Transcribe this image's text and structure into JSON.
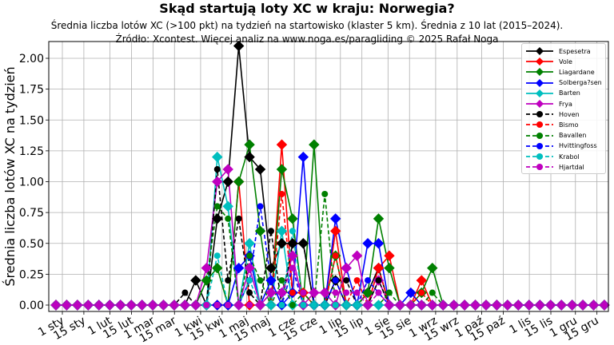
{
  "header": {
    "title": "Skąd startują loty XC w kraju: Norwegia?",
    "subtitle1": "Średnia liczba lotów XC (>100 pkt) na tydzień na startowisko (klaster 5 km). Średnia z 10 lat (2015–2024).",
    "subtitle2": "Źródło: Xcontest. Więcej analiz na www.noga.es/paragliding © 2025 Rafał Noga"
  },
  "chart_data": {
    "type": "line",
    "title": "Skąd startują loty XC w kraju: Norwegia?",
    "xlabel": "",
    "ylabel": "Średnia liczba lotów XC na tydzień",
    "ylim": [
      -0.04,
      2.14
    ],
    "yticks": [
      "0.00",
      "0.25",
      "0.50",
      "0.75",
      "1.00",
      "1.25",
      "1.50",
      "1.75",
      "2.00"
    ],
    "xticks": [
      "1 sty",
      "15 sty",
      "1 lut",
      "15 lut",
      "1 mar",
      "15 mar",
      "1 kwi",
      "15 kwi",
      "1 maj",
      "15 maj",
      "1 cze",
      "15 cze",
      "1 lip",
      "15 lip",
      "1 sie",
      "15 sie",
      "1 wrz",
      "15 wrz",
      "1 paź",
      "15 paź",
      "1 lis",
      "15 lis",
      "1 gru",
      "15 gru"
    ],
    "grid": true,
    "legend_position": "upper right",
    "x": "week index 1-52",
    "series": [
      {
        "name": "Espesetra",
        "color": "#000000",
        "style": "solid",
        "marker": "diamond",
        "values": [
          0,
          0,
          0,
          0,
          0,
          0,
          0,
          0,
          0,
          0,
          0,
          0,
          0,
          0.2,
          0,
          0.7,
          1.0,
          2.1,
          1.2,
          1.1,
          0.3,
          0.5,
          0.5,
          0.5,
          0,
          0,
          0.2,
          0,
          0,
          0.1,
          0.3,
          0,
          0,
          0,
          0,
          0,
          0,
          0,
          0,
          0,
          0,
          0,
          0,
          0,
          0,
          0,
          0,
          0,
          0,
          0,
          0,
          0
        ]
      },
      {
        "name": "Vole",
        "color": "#ff0000",
        "style": "solid",
        "marker": "diamond",
        "values": [
          0,
          0,
          0,
          0,
          0,
          0,
          0,
          0,
          0,
          0,
          0,
          0,
          0,
          0,
          0,
          0,
          0,
          1.0,
          0,
          0,
          0,
          1.3,
          0.1,
          0.1,
          0,
          0,
          0.6,
          0,
          0,
          0,
          0.3,
          0.4,
          0,
          0,
          0.2,
          0,
          0,
          0,
          0,
          0,
          0,
          0,
          0,
          0,
          0,
          0,
          0,
          0,
          0,
          0,
          0,
          0
        ]
      },
      {
        "name": "Liagardane",
        "color": "#008000",
        "style": "solid",
        "marker": "diamond",
        "values": [
          0,
          0,
          0,
          0,
          0,
          0,
          0,
          0,
          0,
          0,
          0,
          0,
          0,
          0,
          0.2,
          0.3,
          0,
          1.0,
          1.3,
          0.6,
          0,
          1.1,
          0.7,
          0,
          1.3,
          0,
          0.4,
          0,
          0,
          0.1,
          0.7,
          0.3,
          0,
          0,
          0.1,
          0.3,
          0,
          0,
          0,
          0,
          0,
          0,
          0,
          0,
          0,
          0,
          0,
          0,
          0,
          0,
          0,
          0
        ]
      },
      {
        "name": "Solberga?sen",
        "color": "#0000ff",
        "style": "solid",
        "marker": "diamond",
        "values": [
          0,
          0,
          0,
          0,
          0,
          0,
          0,
          0,
          0,
          0,
          0,
          0,
          0,
          0,
          0,
          0,
          0,
          0.3,
          0.4,
          0,
          0.2,
          0,
          0.1,
          1.2,
          0,
          0,
          0.7,
          0.3,
          0,
          0.5,
          0.5,
          0,
          0,
          0.1,
          0,
          0,
          0,
          0,
          0,
          0,
          0,
          0,
          0,
          0,
          0,
          0,
          0,
          0,
          0,
          0,
          0,
          0
        ]
      },
      {
        "name": "Barten",
        "color": "#00bfbf",
        "style": "solid",
        "marker": "diamond",
        "values": [
          0,
          0,
          0,
          0,
          0,
          0,
          0,
          0,
          0,
          0,
          0,
          0,
          0,
          0,
          0,
          1.2,
          0.8,
          0,
          0.5,
          0,
          0,
          0.6,
          0,
          0,
          0,
          0,
          0,
          0,
          0,
          0,
          0,
          0,
          0,
          0,
          0,
          0,
          0,
          0,
          0,
          0,
          0,
          0,
          0,
          0,
          0,
          0,
          0,
          0,
          0,
          0,
          0,
          0
        ]
      },
      {
        "name": "Frya",
        "color": "#bf00bf",
        "style": "solid",
        "marker": "diamond",
        "values": [
          0,
          0,
          0,
          0,
          0,
          0,
          0,
          0,
          0,
          0,
          0,
          0,
          0,
          0,
          0.3,
          1.0,
          1.1,
          0,
          0.3,
          0,
          0.1,
          0.1,
          0.4,
          0,
          0.1,
          0.1,
          0,
          0.3,
          0.4,
          0,
          0.2,
          0,
          0,
          0,
          0,
          0,
          0,
          0,
          0,
          0,
          0,
          0,
          0,
          0,
          0,
          0,
          0,
          0,
          0,
          0,
          0,
          0
        ]
      },
      {
        "name": "Hoven",
        "color": "#000000",
        "style": "dashed",
        "marker": "circle",
        "values": [
          0,
          0,
          0,
          0,
          0,
          0,
          0,
          0,
          0,
          0,
          0,
          0,
          0.1,
          0,
          0,
          1.1,
          0.2,
          0.7,
          0.1,
          0,
          0.6,
          0,
          0.5,
          0.5,
          0,
          0,
          0.2,
          0.2,
          0,
          0,
          0.2,
          0,
          0,
          0,
          0,
          0,
          0,
          0,
          0,
          0,
          0,
          0,
          0,
          0,
          0,
          0,
          0,
          0,
          0,
          0,
          0,
          0
        ]
      },
      {
        "name": "Bismo",
        "color": "#ff0000",
        "style": "dashed",
        "marker": "circle",
        "values": [
          0,
          0,
          0,
          0,
          0,
          0,
          0,
          0,
          0,
          0,
          0,
          0,
          0,
          0,
          0,
          0,
          0,
          0,
          0,
          0,
          0,
          0.9,
          0.1,
          0.1,
          0,
          0,
          0.4,
          0,
          0.2,
          0,
          0.3,
          0,
          0,
          0,
          0.1,
          0,
          0,
          0,
          0,
          0,
          0,
          0,
          0,
          0,
          0,
          0,
          0,
          0,
          0,
          0,
          0,
          0
        ]
      },
      {
        "name": "Bavallen",
        "color": "#008000",
        "style": "dashed",
        "marker": "circle",
        "values": [
          0,
          0,
          0,
          0,
          0,
          0,
          0,
          0,
          0,
          0,
          0,
          0,
          0,
          0,
          0.2,
          0.8,
          0.7,
          0,
          0.4,
          0.2,
          0,
          0.2,
          0,
          0.1,
          0,
          0.9,
          0,
          0,
          0,
          0,
          0,
          0.1,
          0,
          0,
          0,
          0.1,
          0,
          0,
          0,
          0,
          0,
          0,
          0,
          0,
          0,
          0,
          0,
          0,
          0,
          0,
          0,
          0
        ]
      },
      {
        "name": "Hvittingfoss",
        "color": "#0000ff",
        "style": "dashed",
        "marker": "circle",
        "values": [
          0,
          0,
          0,
          0,
          0,
          0,
          0,
          0,
          0,
          0,
          0,
          0,
          0,
          0,
          0,
          0,
          0,
          0,
          0.2,
          0.8,
          0.2,
          0,
          0.3,
          0,
          0,
          0,
          0.2,
          0,
          0,
          0.2,
          0.1,
          0,
          0,
          0,
          0,
          0,
          0,
          0,
          0,
          0,
          0,
          0,
          0,
          0,
          0,
          0,
          0,
          0,
          0,
          0,
          0,
          0
        ]
      },
      {
        "name": "Krabol",
        "color": "#00bfbf",
        "style": "dashed",
        "marker": "circle",
        "values": [
          0,
          0,
          0,
          0,
          0,
          0,
          0,
          0,
          0,
          0,
          0,
          0,
          0,
          0,
          0,
          0.4,
          0,
          0,
          0.2,
          0,
          0,
          0,
          0.6,
          0,
          0,
          0,
          0,
          0,
          0,
          0,
          0,
          0,
          0,
          0,
          0,
          0,
          0,
          0,
          0,
          0,
          0,
          0,
          0,
          0,
          0,
          0,
          0,
          0,
          0,
          0,
          0,
          0
        ]
      },
      {
        "name": "Hjartdal",
        "color": "#bf00bf",
        "style": "dashed",
        "marker": "circle",
        "values": [
          0,
          0,
          0,
          0,
          0,
          0,
          0,
          0,
          0,
          0,
          0,
          0,
          0,
          0,
          0,
          0,
          0,
          0,
          0,
          0,
          0.1,
          0.1,
          0.3,
          0.1,
          0.1,
          0.1,
          0.1,
          0.1,
          0.1,
          0,
          0.1,
          0,
          0,
          0,
          0,
          0,
          0,
          0,
          0,
          0,
          0,
          0,
          0,
          0,
          0,
          0,
          0,
          0,
          0,
          0,
          0,
          0
        ]
      }
    ]
  }
}
